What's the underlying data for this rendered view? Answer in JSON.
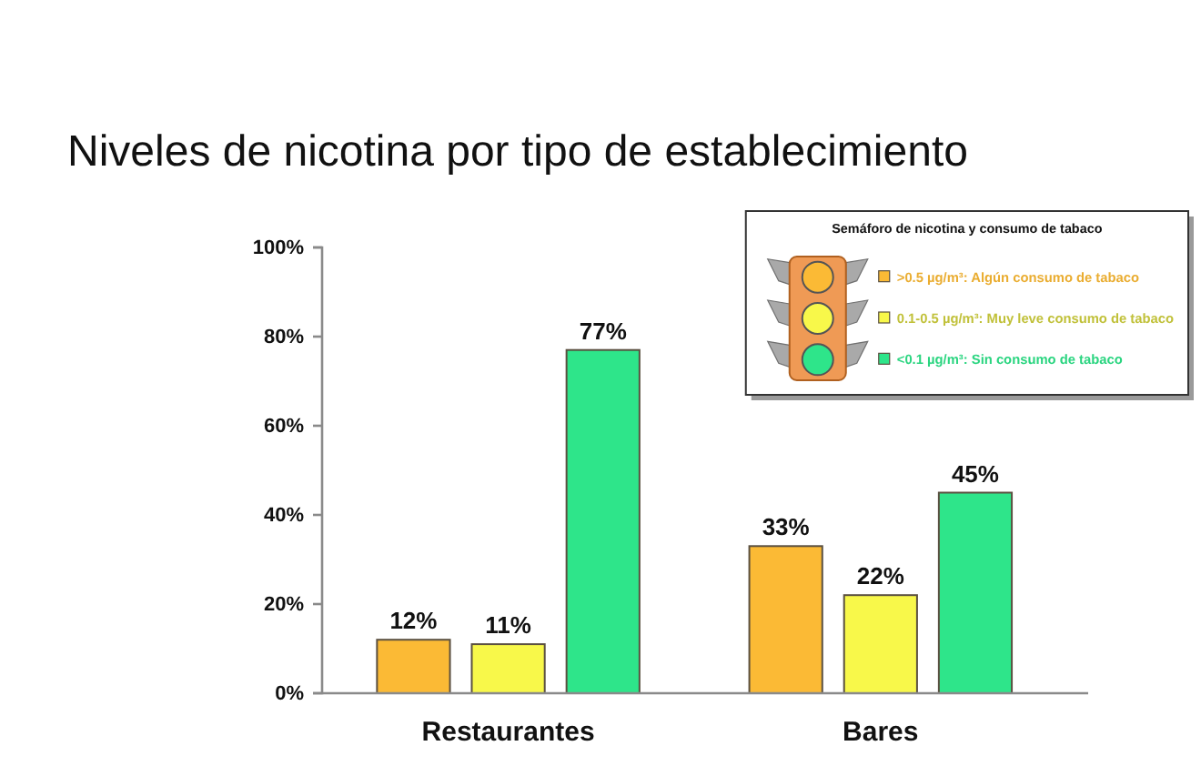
{
  "chart_data": {
    "type": "bar",
    "title": "Niveles de nicotina por tipo de establecimiento",
    "categories": [
      "Restaurantes",
      "Bares"
    ],
    "series": [
      {
        "name": ">0.5 µg/m³: Algún consumo de tabaco",
        "color": "#fbba35",
        "values": [
          12,
          33
        ],
        "value_labels": [
          "12%",
          "33%"
        ]
      },
      {
        "name": "0.1-0.5 µg/m³: Muy leve consumo de tabaco",
        "color": "#f8f84a",
        "values": [
          11,
          22
        ],
        "value_labels": [
          "11%",
          "22%"
        ]
      },
      {
        "name": "<0.1 µg/m³: Sin consumo de tabaco",
        "color": "#2ee58a",
        "values": [
          77,
          45
        ],
        "value_labels": [
          "77%",
          "45%"
        ]
      }
    ],
    "ylim": [
      0,
      100
    ],
    "yticks": [
      {
        "value": 0,
        "label": "0%"
      },
      {
        "value": 20,
        "label": "20%"
      },
      {
        "value": 40,
        "label": "40%"
      },
      {
        "value": 60,
        "label": "60%"
      },
      {
        "value": 80,
        "label": "80%"
      },
      {
        "value": 100,
        "label": "100%"
      }
    ],
    "legend": "top right",
    "legend_title": "Semáforo de nicotina y consumo de tabaco"
  }
}
